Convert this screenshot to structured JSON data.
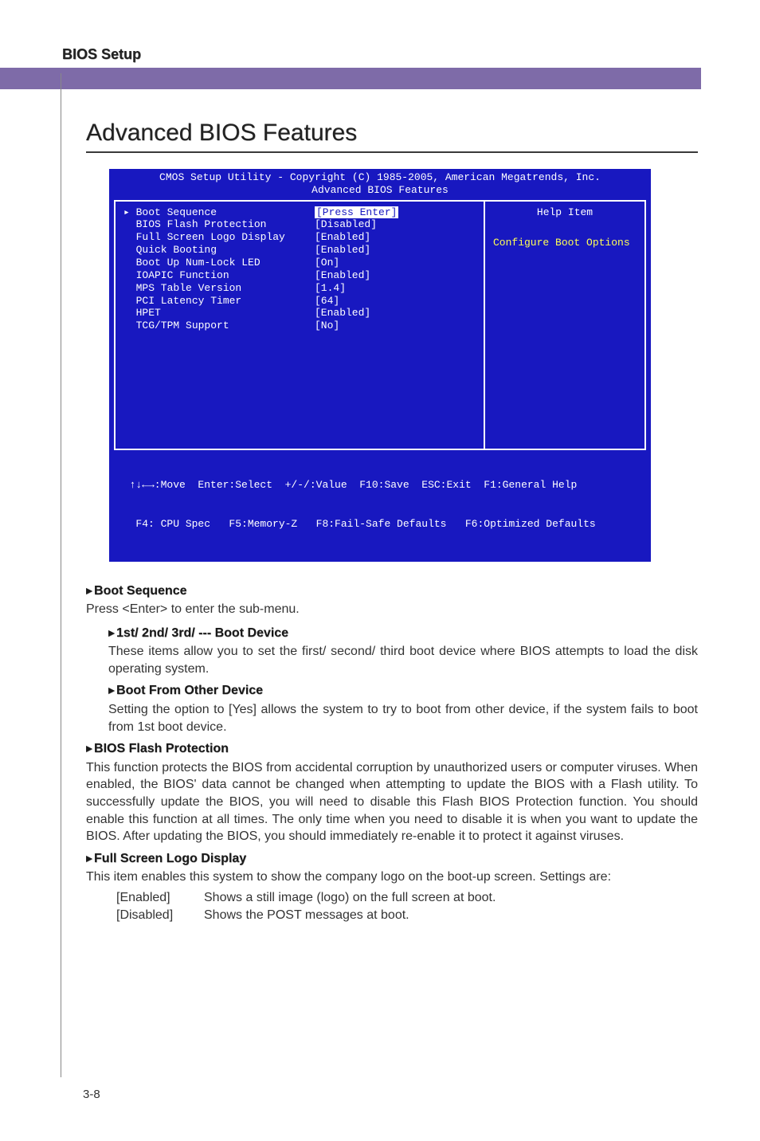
{
  "page": {
    "header": "BIOS Setup",
    "section_title": "Advanced BIOS Features",
    "page_number": "3-8"
  },
  "bios": {
    "title_line1": "CMOS Setup Utility - Copyright (C) 1985-2005, American Megatrends, Inc.",
    "title_line2": "Advanced BIOS Features",
    "help_title": "Help Item",
    "help_desc": "Configure Boot Options",
    "rows": [
      {
        "label": "▸ Boot Sequence",
        "value": "[Press Enter]",
        "highlight": true
      },
      {
        "label": "  BIOS Flash Protection",
        "value": "[Disabled]"
      },
      {
        "label": "  Full Screen Logo Display",
        "value": "[Enabled]"
      },
      {
        "label": "  Quick Booting",
        "value": "[Enabled]"
      },
      {
        "label": "  Boot Up Num-Lock LED",
        "value": "[On]"
      },
      {
        "label": "  IOAPIC Function",
        "value": "[Enabled]"
      },
      {
        "label": "  MPS Table Version",
        "value": "[1.4]"
      },
      {
        "label": "  PCI Latency Timer",
        "value": "[64]"
      },
      {
        "label": "  HPET",
        "value": "[Enabled]"
      },
      {
        "label": "  TCG/TPM Support",
        "value": "[No]"
      }
    ],
    "footer1": "  ↑↓←→:Move  Enter:Select  +/-/:Value  F10:Save  ESC:Exit  F1:General Help",
    "footer2": "   F4: CPU Spec   F5:Memory-Z   F8:Fail-Safe Defaults   F6:Optimized Defaults",
    "colors": {
      "bg": "#1818c0",
      "text": "#ffffff",
      "accent": "#ffff55"
    }
  },
  "doc": {
    "boot_seq_h": "Boot Sequence",
    "boot_seq_t": "Press <Enter> to enter the sub-menu.",
    "boot_dev_h": "1st/ 2nd/ 3rd/ --- Boot Device",
    "boot_dev_t": "These items allow you to set the first/ second/ third boot device where BIOS attempts to load the disk operating system.",
    "boot_other_h": "Boot From Other Device",
    "boot_other_t": "Setting the option to [Yes] allows the system to try to boot from other device, if the system fails to boot from 1st boot device.",
    "flash_h": "BIOS Flash Protection",
    "flash_t": "This function protects the BIOS from accidental corruption by unauthorized users or computer viruses. When enabled, the BIOS' data cannot be changed when attempting to update the BIOS with a Flash utility. To successfully update the BIOS, you will need to disable this Flash BIOS Protection function. You should enable this function at all times. The only time when you need to disable it is when you want to update the BIOS. After updating the BIOS, you should immediately re-enable it to protect it against viruses.",
    "logo_h": "Full Screen Logo Display",
    "logo_t": "This item enables this system to show the company logo on the boot-up screen. Settings are:",
    "logo_opts": [
      {
        "k": "[Enabled]",
        "v": "Shows a still image (logo) on the full screen at boot."
      },
      {
        "k": "[Disabled]",
        "v": "Shows the POST messages at boot."
      }
    ]
  }
}
